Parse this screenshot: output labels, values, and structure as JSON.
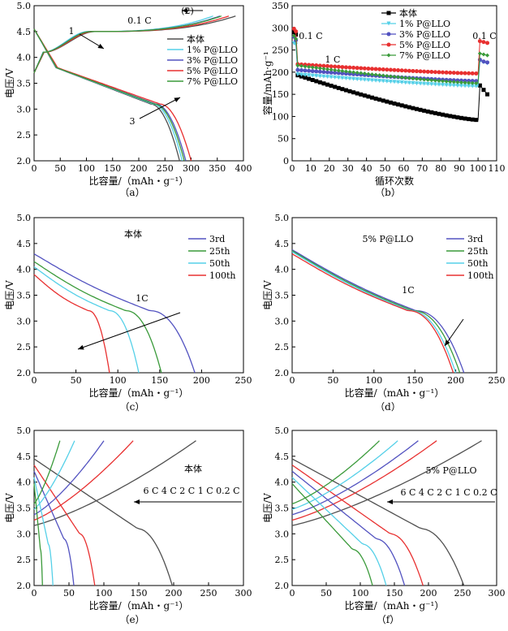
{
  "chart_data": [
    {
      "panel": "a",
      "type": "line",
      "caption": "（a）",
      "xlabel": "比容量/（mAh・g⁻¹）",
      "ylabel": "电压/V",
      "xlim": [
        0,
        400
      ],
      "ylim": [
        2.0,
        5.0
      ],
      "xticks": [
        0,
        50,
        100,
        150,
        200,
        250,
        300,
        350,
        400
      ],
      "yticks": [
        2.0,
        2.5,
        3.0,
        3.5,
        4.0,
        4.5,
        5.0
      ],
      "legend_position": "right",
      "annotations": [
        {
          "text": "0.1 C"
        },
        {
          "text": "(2)"
        },
        {
          "text": "1"
        },
        {
          "text": "3"
        }
      ],
      "series": [
        {
          "name": "本体",
          "color": "#505050",
          "charge_end": 385,
          "discharge_end": 278
        },
        {
          "name": "1% P@LLO",
          "color": "#55d0e8",
          "charge_end": 342,
          "discharge_end": 283
        },
        {
          "name": "3% P@LLO",
          "color": "#5252c0",
          "charge_end": 355,
          "discharge_end": 290
        },
        {
          "name": "5% P@LLO",
          "color": "#e83030",
          "charge_end": 372,
          "discharge_end": 300
        },
        {
          "name": "7% P@LLO",
          "color": "#3a9a3a",
          "charge_end": 358,
          "discharge_end": 287
        }
      ]
    },
    {
      "panel": "b",
      "type": "scatter",
      "caption": "（b）",
      "xlabel": "循环次数",
      "ylabel": "容量/mAh·g⁻¹",
      "xlim": [
        0,
        110
      ],
      "ylim": [
        0,
        350
      ],
      "xticks": [
        0,
        10,
        20,
        30,
        40,
        50,
        60,
        70,
        80,
        90,
        100,
        110
      ],
      "yticks": [
        0,
        50,
        100,
        150,
        200,
        250,
        300,
        350
      ],
      "legend_position": "top-right",
      "annotations": [
        {
          "text": "0.1 C"
        },
        {
          "text": "1 C"
        },
        {
          "text": "0.1 C"
        }
      ],
      "series": [
        {
          "name": "本体",
          "color": "#000000",
          "marker": "square",
          "initial": [
            290,
            285
          ],
          "start": 193,
          "end": 92,
          "recovery": [
            170,
            160,
            150
          ]
        },
        {
          "name": "1% P@LLO",
          "color": "#55d0e8",
          "marker": "triangle-down",
          "initial": [
            265,
            262
          ],
          "start": 195,
          "end": 168,
          "recovery": [
            225,
            222,
            220
          ]
        },
        {
          "name": "3% P@LLO",
          "color": "#5252c0",
          "marker": "circle",
          "initial": [
            280,
            272
          ],
          "start": 205,
          "end": 180,
          "recovery": [
            228,
            224,
            222
          ]
        },
        {
          "name": "5% P@LLO",
          "color": "#e83030",
          "marker": "circle",
          "initial": [
            298,
            292
          ],
          "start": 218,
          "end": 197,
          "recovery": [
            270,
            268,
            266
          ]
        },
        {
          "name": "7% P@LLO",
          "color": "#3a9a3a",
          "marker": "diamond",
          "initial": [
            282,
            275
          ],
          "start": 215,
          "end": 175,
          "recovery": [
            242,
            240,
            238
          ]
        }
      ]
    },
    {
      "panel": "c",
      "type": "line",
      "caption": "（c）",
      "xlabel": "比容量/（mAh・g⁻¹）",
      "ylabel": "电压/V",
      "xlim": [
        0,
        250
      ],
      "ylim": [
        2.0,
        5.0
      ],
      "xticks": [
        0,
        50,
        100,
        150,
        200,
        250
      ],
      "yticks": [
        2.0,
        2.5,
        3.0,
        3.5,
        4.0,
        4.5,
        5.0
      ],
      "legend_position": "top-right",
      "annotations": [
        {
          "text": "本体"
        },
        {
          "text": "1C"
        }
      ],
      "series": [
        {
          "name": "3rd",
          "color": "#5252c0",
          "start_v": 4.3,
          "end_capacity": 192
        },
        {
          "name": "25th",
          "color": "#3a9a3a",
          "start_v": 4.15,
          "end_capacity": 152
        },
        {
          "name": "50th",
          "color": "#55d0e8",
          "start_v": 4.05,
          "end_capacity": 125
        },
        {
          "name": "100th",
          "color": "#e83030",
          "start_v": 3.9,
          "end_capacity": 90
        }
      ]
    },
    {
      "panel": "d",
      "type": "line",
      "caption": "（d）",
      "xlabel": "比容量/（mAh・g⁻¹）",
      "ylabel": "电压/V",
      "xlim": [
        0,
        250
      ],
      "ylim": [
        2.0,
        5.0
      ],
      "xticks": [
        0,
        50,
        100,
        150,
        200,
        250
      ],
      "yticks": [
        2.0,
        2.5,
        3.0,
        3.5,
        4.0,
        4.5,
        5.0
      ],
      "legend_position": "top-right",
      "annotations": [
        {
          "text": "5% P@LLO"
        },
        {
          "text": "1C"
        }
      ],
      "series": [
        {
          "name": "3rd",
          "color": "#5252c0",
          "start_v": 4.38,
          "end_capacity": 210
        },
        {
          "name": "25th",
          "color": "#3a9a3a",
          "start_v": 4.36,
          "end_capacity": 205
        },
        {
          "name": "50th",
          "color": "#55d0e8",
          "start_v": 4.34,
          "end_capacity": 200
        },
        {
          "name": "100th",
          "color": "#e83030",
          "start_v": 4.3,
          "end_capacity": 197
        }
      ]
    },
    {
      "panel": "e",
      "type": "line",
      "caption": "（e）",
      "xlabel": "比容量/（mAh・g⁻¹）",
      "ylabel": "电压/V",
      "xlim": [
        0,
        300
      ],
      "ylim": [
        2.0,
        5.0
      ],
      "xticks": [
        0,
        50,
        100,
        150,
        200,
        250,
        300
      ],
      "yticks": [
        2.0,
        2.5,
        3.0,
        3.5,
        4.0,
        4.5,
        5.0
      ],
      "annotations": [
        {
          "text": "本体"
        },
        {
          "text": "6 C 4 C 2 C 1 C 0.2 C"
        }
      ],
      "series": [
        {
          "name": "0.2 C",
          "color": "#505050",
          "charge_end": 232,
          "discharge_end": 198
        },
        {
          "name": "1 C",
          "color": "#e83030",
          "charge_end": 142,
          "discharge_end": 87
        },
        {
          "name": "2 C",
          "color": "#5252c0",
          "charge_end": 100,
          "discharge_end": 57
        },
        {
          "name": "4 C",
          "color": "#55d0e8",
          "charge_end": 58,
          "discharge_end": 27
        },
        {
          "name": "6 C",
          "color": "#3a9a3a",
          "charge_end": 37,
          "discharge_end": 12
        }
      ]
    },
    {
      "panel": "f",
      "type": "line",
      "caption": "（f）",
      "xlabel": "比容量/（mAh・g⁻¹）",
      "ylabel": "电压/V",
      "xlim": [
        0,
        300
      ],
      "ylim": [
        2.0,
        5.0
      ],
      "xticks": [
        0,
        50,
        100,
        150,
        200,
        250,
        300
      ],
      "yticks": [
        2.0,
        2.5,
        3.0,
        3.5,
        4.0,
        4.5,
        5.0
      ],
      "annotations": [
        {
          "text": "5% P@LLO"
        },
        {
          "text": "6 C 4 C 2 C 1 C 0.2 C"
        }
      ],
      "series": [
        {
          "name": "0.2 C",
          "color": "#505050",
          "charge_end": 278,
          "discharge_end": 252
        },
        {
          "name": "1 C",
          "color": "#e83030",
          "charge_end": 212,
          "discharge_end": 192
        },
        {
          "name": "2 C",
          "color": "#5252c0",
          "charge_end": 185,
          "discharge_end": 165
        },
        {
          "name": "4 C",
          "color": "#55d0e8",
          "charge_end": 155,
          "discharge_end": 138
        },
        {
          "name": "6 C",
          "color": "#3a9a3a",
          "charge_end": 128,
          "discharge_end": 118
        }
      ]
    }
  ]
}
